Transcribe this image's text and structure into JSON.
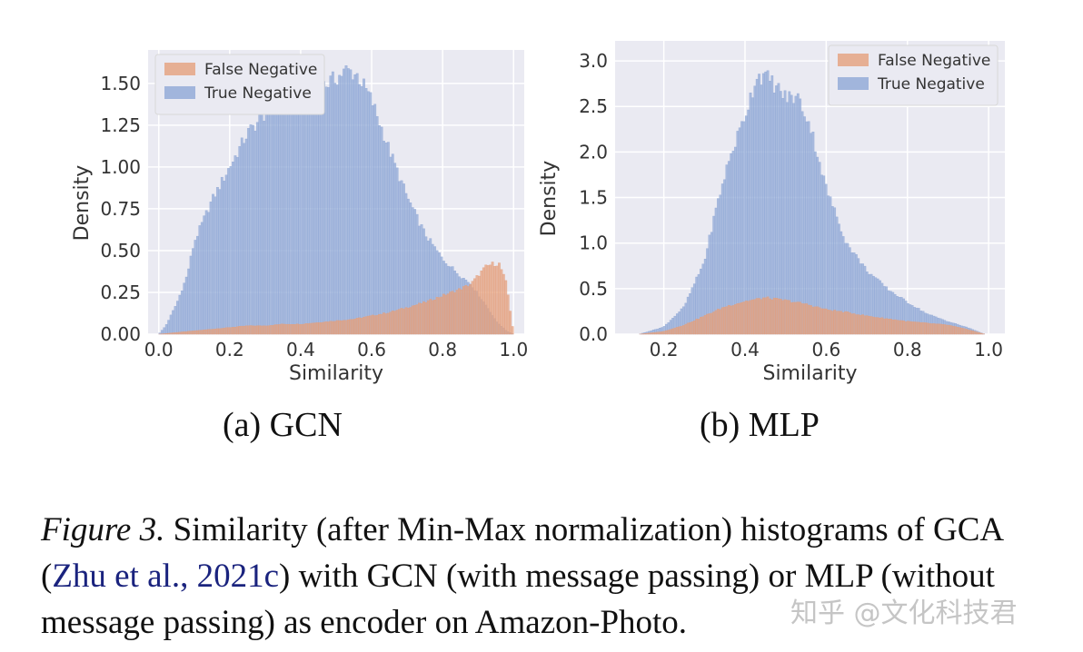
{
  "chart_data": [
    {
      "type": "histogram",
      "subcaption": "(a) GCN",
      "xlabel": "Similarity",
      "ylabel": "Density",
      "xlim": [
        -0.03,
        1.03
      ],
      "ylim": [
        0,
        1.7
      ],
      "xticks": [
        "0.0",
        "0.2",
        "0.4",
        "0.6",
        "0.8",
        "1.0"
      ],
      "yticks": [
        "0.00",
        "0.25",
        "0.50",
        "0.75",
        "1.00",
        "1.25",
        "1.50"
      ],
      "grid": true,
      "legend_position": "top-left",
      "series": [
        {
          "name": "False Negative",
          "color": "#e5a07c",
          "x": [
            0.0,
            0.05,
            0.1,
            0.15,
            0.2,
            0.25,
            0.3,
            0.35,
            0.4,
            0.45,
            0.5,
            0.55,
            0.6,
            0.65,
            0.7,
            0.75,
            0.8,
            0.85,
            0.88,
            0.9,
            0.92,
            0.94,
            0.96,
            0.98,
            1.0
          ],
          "values": [
            0.0,
            0.01,
            0.02,
            0.03,
            0.04,
            0.05,
            0.05,
            0.06,
            0.06,
            0.07,
            0.08,
            0.09,
            0.11,
            0.13,
            0.16,
            0.19,
            0.23,
            0.27,
            0.3,
            0.35,
            0.4,
            0.42,
            0.42,
            0.3,
            0.0
          ]
        },
        {
          "name": "True Negative",
          "color": "#8fa7d6",
          "x": [
            0.0,
            0.02,
            0.05,
            0.08,
            0.1,
            0.15,
            0.2,
            0.25,
            0.3,
            0.35,
            0.4,
            0.45,
            0.5,
            0.53,
            0.56,
            0.6,
            0.65,
            0.7,
            0.75,
            0.8,
            0.85,
            0.88,
            0.9,
            0.93,
            0.95,
            0.98,
            1.0
          ],
          "values": [
            0.0,
            0.05,
            0.18,
            0.35,
            0.55,
            0.8,
            1.0,
            1.2,
            1.32,
            1.4,
            1.43,
            1.47,
            1.53,
            1.58,
            1.55,
            1.4,
            1.1,
            0.82,
            0.6,
            0.45,
            0.35,
            0.3,
            0.24,
            0.15,
            0.08,
            0.02,
            0.0
          ]
        }
      ]
    },
    {
      "type": "histogram",
      "subcaption": "(b) MLP",
      "xlabel": "Similarity",
      "ylabel": "Density",
      "xlim": [
        0.08,
        1.04
      ],
      "ylim": [
        0,
        3.22
      ],
      "xticks": [
        "0.2",
        "0.4",
        "0.6",
        "0.8",
        "1.0"
      ],
      "yticks": [
        "0.0",
        "0.5",
        "1.0",
        "1.5",
        "2.0",
        "2.5",
        "3.0"
      ],
      "grid": true,
      "legend_position": "top-right",
      "series": [
        {
          "name": "False Negative",
          "color": "#e5a07c",
          "x": [
            0.14,
            0.2,
            0.25,
            0.3,
            0.35,
            0.4,
            0.45,
            0.5,
            0.55,
            0.6,
            0.65,
            0.7,
            0.75,
            0.8,
            0.85,
            0.9,
            0.95,
            0.99
          ],
          "values": [
            0.0,
            0.03,
            0.1,
            0.2,
            0.3,
            0.36,
            0.4,
            0.37,
            0.33,
            0.27,
            0.24,
            0.2,
            0.17,
            0.14,
            0.12,
            0.1,
            0.05,
            0.0
          ]
        },
        {
          "name": "True Negative",
          "color": "#8fa7d6",
          "x": [
            0.14,
            0.2,
            0.25,
            0.3,
            0.33,
            0.36,
            0.4,
            0.43,
            0.46,
            0.5,
            0.53,
            0.56,
            0.6,
            0.65,
            0.7,
            0.75,
            0.8,
            0.85,
            0.9,
            0.95,
            0.99
          ],
          "values": [
            0.0,
            0.08,
            0.3,
            0.8,
            1.4,
            1.9,
            2.4,
            2.85,
            2.8,
            2.6,
            2.6,
            2.3,
            1.6,
            1.0,
            0.7,
            0.5,
            0.35,
            0.22,
            0.14,
            0.07,
            0.0
          ]
        }
      ]
    }
  ],
  "caption": {
    "label": "Figure 3.",
    "part1": " Similarity (after Min-Max normalization) histograms of GCA (",
    "citation": "Zhu et al., 2021c",
    "part2": ") with GCN (with message passing) or MLP (without message passing) as encoder on Amazon-Photo."
  },
  "watermark": "知乎 @文化科技君"
}
